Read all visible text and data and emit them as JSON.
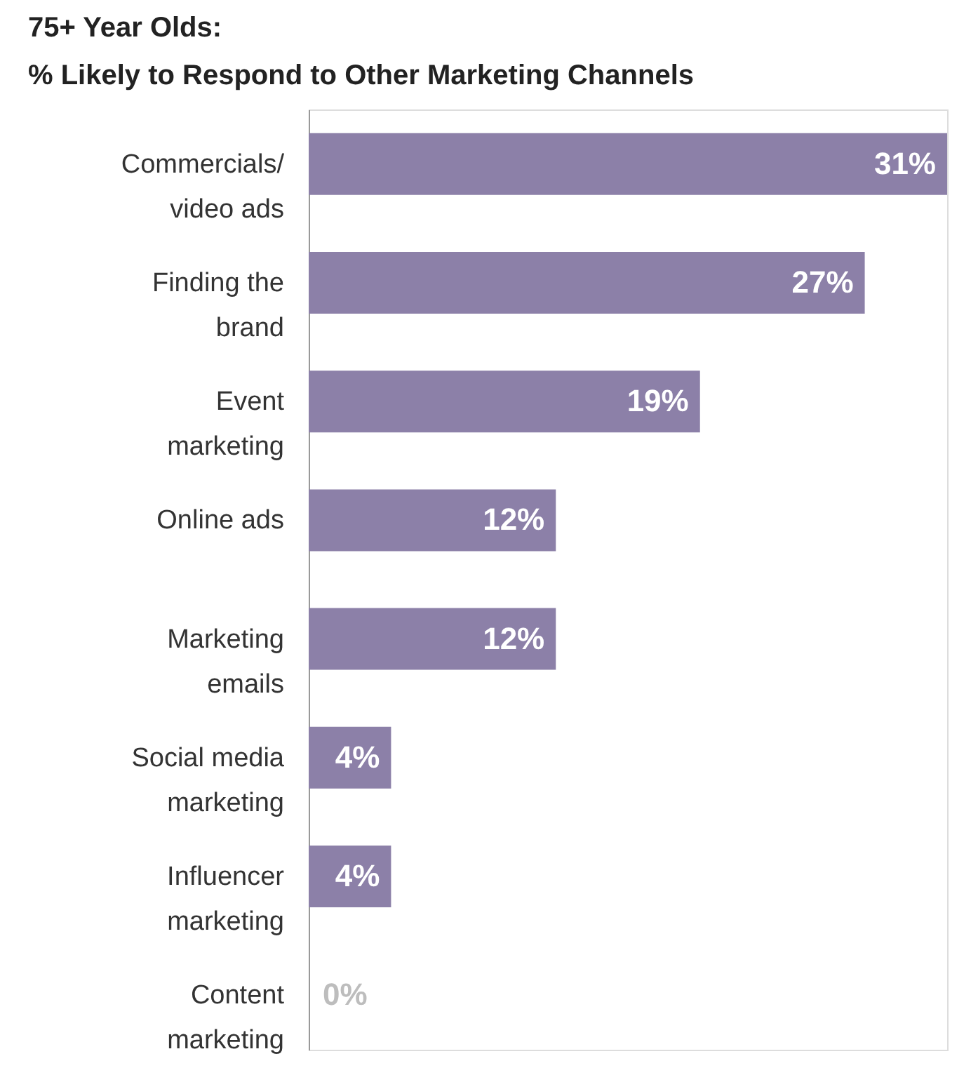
{
  "chart_data": {
    "type": "bar",
    "orientation": "horizontal",
    "title": "75+ Year Olds:",
    "subtitle": "% Likely to Respond to Other Marketing Channels",
    "categories": [
      "Commercials/\nvideo ads",
      "Finding the\nbrand",
      "Event\nmarketing",
      "Online ads",
      "Marketing\nemails",
      "Social media\nmarketing",
      "Influencer\nmarketing",
      "Content\nmarketing"
    ],
    "values": [
      31,
      27,
      19,
      12,
      12,
      4,
      4,
      0
    ],
    "value_labels": [
      "31%",
      "27%",
      "19%",
      "12%",
      "12%",
      "4%",
      "4%",
      "0%"
    ],
    "color": "#8c80a8",
    "grid": false
  }
}
